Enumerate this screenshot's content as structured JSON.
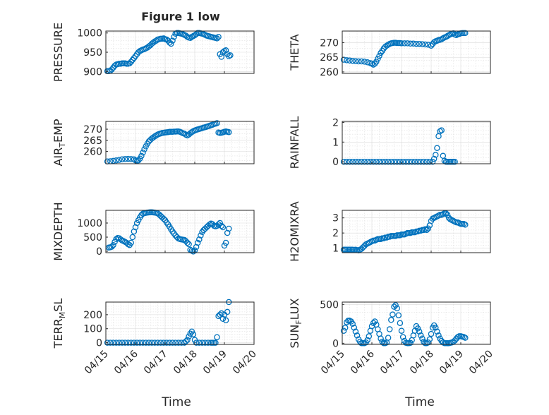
{
  "figure": {
    "title": "Figure 1 low",
    "xlabel": "Time",
    "xticklabels": [
      "04/15",
      "04/16",
      "04/17",
      "04/18",
      "04/19",
      "04/20"
    ]
  },
  "colors": {
    "marker": "#0072bd",
    "axis": "#262626",
    "grid": "#d9d9d9"
  },
  "chart_data": [
    {
      "type": "scatter",
      "id": "pressure",
      "ylabel": "PRESSURE",
      "title": "Figure 1 low",
      "xlim": [
        "04/15",
        "04/20"
      ],
      "ylim": [
        895,
        1005
      ],
      "yticks": [
        900,
        950,
        1000
      ],
      "minor_y": [
        910,
        920,
        930,
        940,
        960,
        970,
        980,
        990
      ],
      "grid": true,
      "marker": "open-circle",
      "x": [
        0.05,
        0.1,
        0.15,
        0.2,
        0.25,
        0.3,
        0.35,
        0.4,
        0.45,
        0.5,
        0.55,
        0.6,
        0.65,
        0.7,
        0.75,
        0.8,
        0.85,
        0.9,
        0.95,
        1.0,
        1.05,
        1.1,
        1.15,
        1.2,
        1.25,
        1.3,
        1.35,
        1.4,
        1.45,
        1.5,
        1.55,
        1.6,
        1.65,
        1.7,
        1.75,
        1.8,
        1.85,
        1.9,
        1.95,
        2.0,
        2.05,
        2.1,
        2.15,
        2.2,
        2.25,
        2.3,
        2.35,
        2.4,
        2.45,
        2.5,
        2.55,
        2.6,
        2.65,
        2.7,
        2.75,
        2.8,
        2.85,
        2.9,
        2.95,
        3.0,
        3.05,
        3.1,
        3.15,
        3.2,
        3.25,
        3.3,
        3.35,
        3.4,
        3.45,
        3.5,
        3.55,
        3.6,
        3.65,
        3.7,
        3.75,
        3.8,
        3.85,
        3.9,
        3.95,
        4.0,
        4.05,
        4.1,
        4.15,
        4.2
      ],
      "y": [
        901,
        901,
        902,
        905,
        910,
        915,
        918,
        919,
        920,
        920,
        921,
        921,
        921,
        920,
        920,
        921,
        925,
        930,
        935,
        940,
        945,
        950,
        953,
        955,
        957,
        958,
        960,
        962,
        965,
        968,
        972,
        975,
        978,
        980,
        983,
        984,
        985,
        985,
        986,
        984,
        983,
        980,
        975,
        972,
        980,
        990,
        998,
        1000,
        1000,
        999,
        998,
        997,
        995,
        993,
        990,
        988,
        987,
        990,
        992,
        994,
        997,
        1000,
        1000,
        999,
        998,
        997,
        995,
        993,
        992,
        991,
        990,
        989,
        988,
        987,
        986,
        990,
        945,
        938,
        950,
        953,
        955,
        945,
        940,
        942
      ]
    },
    {
      "type": "scatter",
      "id": "theta",
      "ylabel": "THETA",
      "xlim": [
        "04/15",
        "04/20"
      ],
      "ylim": [
        259.5,
        274
      ],
      "yticks": [
        260,
        265,
        270
      ],
      "minor_y": [
        262,
        264,
        266,
        268,
        272
      ],
      "grid": true,
      "marker": "open-circle",
      "x": [
        0.05,
        0.15,
        0.25,
        0.35,
        0.45,
        0.55,
        0.65,
        0.75,
        0.85,
        0.95,
        1.0,
        1.05,
        1.1,
        1.15,
        1.2,
        1.25,
        1.3,
        1.35,
        1.4,
        1.45,
        1.5,
        1.55,
        1.6,
        1.65,
        1.7,
        1.75,
        1.8,
        1.85,
        1.9,
        1.95,
        2.0,
        2.1,
        2.2,
        2.3,
        2.4,
        2.5,
        2.6,
        2.7,
        2.8,
        2.9,
        3.0,
        3.05,
        3.1,
        3.15,
        3.2,
        3.25,
        3.3,
        3.35,
        3.4,
        3.45,
        3.5,
        3.55,
        3.6,
        3.65,
        3.7,
        3.75,
        3.8,
        3.85,
        3.9,
        3.95,
        4.0,
        4.05,
        4.1,
        4.15
      ],
      "y": [
        264.2,
        264.0,
        263.9,
        263.8,
        263.7,
        263.6,
        263.6,
        263.5,
        263.3,
        263.0,
        262.8,
        262.5,
        262.8,
        263.5,
        264.5,
        265.5,
        266.5,
        267.2,
        268.0,
        268.6,
        269.0,
        269.3,
        269.6,
        269.8,
        269.9,
        270.0,
        270.0,
        269.9,
        269.9,
        269.9,
        269.8,
        269.8,
        269.8,
        269.7,
        269.7,
        269.6,
        269.6,
        269.5,
        269.4,
        269.3,
        269.0,
        269.6,
        270.2,
        270.5,
        270.7,
        270.9,
        271.0,
        271.2,
        271.5,
        271.8,
        272.0,
        272.3,
        272.6,
        272.9,
        273.1,
        273.2,
        272.8,
        272.6,
        272.9,
        273.0,
        273.2,
        273.3,
        273.3,
        273.3
      ]
    },
    {
      "type": "scatter",
      "id": "air-temp",
      "ylabel": "AIR_TEMP",
      "xlim": [
        "04/15",
        "04/20"
      ],
      "ylim": [
        254.5,
        273.5
      ],
      "yticks": [
        260,
        265,
        270
      ],
      "minor_y": [
        256,
        258,
        262,
        264,
        266,
        268,
        272
      ],
      "grid": true,
      "marker": "open-circle",
      "x": [
        0.05,
        0.15,
        0.25,
        0.35,
        0.45,
        0.55,
        0.65,
        0.75,
        0.85,
        0.95,
        1.0,
        1.05,
        1.1,
        1.15,
        1.2,
        1.25,
        1.3,
        1.35,
        1.4,
        1.45,
        1.5,
        1.55,
        1.6,
        1.65,
        1.7,
        1.75,
        1.8,
        1.85,
        1.9,
        1.95,
        2.0,
        2.05,
        2.1,
        2.15,
        2.2,
        2.25,
        2.3,
        2.35,
        2.4,
        2.45,
        2.5,
        2.55,
        2.6,
        2.65,
        2.7,
        2.75,
        2.8,
        2.85,
        2.9,
        2.95,
        3.0,
        3.05,
        3.1,
        3.15,
        3.2,
        3.25,
        3.3,
        3.35,
        3.4,
        3.45,
        3.5,
        3.55,
        3.6,
        3.65,
        3.7,
        3.75,
        3.8,
        3.85,
        3.9,
        3.95,
        4.0,
        4.05,
        4.1,
        4.15
      ],
      "y": [
        255.5,
        255.6,
        255.8,
        256.0,
        256.2,
        256.5,
        256.6,
        256.7,
        256.6,
        256.5,
        256.0,
        255.8,
        256.0,
        256.8,
        258.0,
        259.5,
        261.0,
        262.3,
        263.5,
        264.5,
        265.2,
        265.8,
        266.3,
        266.8,
        267.2,
        267.6,
        267.9,
        268.1,
        268.3,
        268.4,
        268.5,
        268.6,
        268.7,
        268.8,
        268.8,
        268.8,
        268.9,
        268.9,
        269.0,
        269.0,
        268.8,
        268.5,
        268.2,
        268.0,
        267.5,
        267.2,
        267.6,
        268.2,
        268.7,
        269.1,
        269.4,
        269.7,
        269.9,
        270.1,
        270.3,
        270.5,
        270.7,
        270.9,
        271.1,
        271.3,
        271.5,
        271.8,
        272.0,
        272.3,
        272.5,
        272.7,
        268.5,
        268.3,
        268.4,
        268.6,
        268.8,
        269.0,
        268.8,
        268.7
      ]
    },
    {
      "type": "scatter",
      "id": "rainfall",
      "ylabel": "RAINFALL",
      "xlim": [
        "04/15",
        "04/20"
      ],
      "ylim": [
        -0.1,
        2.05
      ],
      "yticks": [
        0,
        1,
        2
      ],
      "minor_y": [
        0.2,
        0.4,
        0.6,
        0.8,
        1.2,
        1.4,
        1.6,
        1.8
      ],
      "grid": true,
      "marker": "open-circle",
      "x": [
        0.05,
        0.15,
        0.25,
        0.35,
        0.45,
        0.55,
        0.65,
        0.75,
        0.85,
        0.95,
        1.05,
        1.15,
        1.25,
        1.35,
        1.45,
        1.55,
        1.65,
        1.75,
        1.85,
        1.95,
        2.05,
        2.15,
        2.25,
        2.35,
        2.45,
        2.55,
        2.65,
        2.75,
        2.85,
        2.95,
        3.05,
        3.1,
        3.15,
        3.2,
        3.25,
        3.3,
        3.35,
        3.4,
        3.45,
        3.5,
        3.55,
        3.6,
        3.65,
        3.7,
        3.75,
        3.8
      ],
      "y": [
        0,
        0,
        0,
        0,
        0,
        0,
        0,
        0,
        0,
        0,
        0,
        0,
        0,
        0,
        0,
        0,
        0,
        0,
        0,
        0,
        0,
        0,
        0,
        0,
        0,
        0,
        0,
        0,
        0,
        0,
        0,
        0.15,
        0.35,
        0.7,
        1.3,
        1.55,
        1.6,
        0.3,
        0.05,
        0,
        0,
        0,
        0,
        0,
        0,
        0
      ]
    },
    {
      "type": "scatter",
      "id": "mixdepth",
      "ylabel": "MIXDEPTH",
      "xlim": [
        "04/15",
        "04/20"
      ],
      "ylim": [
        -50,
        1450
      ],
      "yticks": [
        0,
        500,
        1000
      ],
      "minor_y": [
        100,
        200,
        300,
        400,
        600,
        700,
        800,
        900,
        1100,
        1200,
        1300
      ],
      "grid": true,
      "marker": "open-circle",
      "x": [
        0.1,
        0.15,
        0.2,
        0.25,
        0.3,
        0.35,
        0.4,
        0.45,
        0.5,
        0.55,
        0.6,
        0.65,
        0.7,
        0.75,
        0.8,
        0.85,
        0.9,
        0.95,
        1.0,
        1.05,
        1.1,
        1.15,
        1.2,
        1.25,
        1.3,
        1.35,
        1.4,
        1.45,
        1.5,
        1.55,
        1.6,
        1.65,
        1.7,
        1.75,
        1.8,
        1.85,
        1.9,
        1.95,
        2.0,
        2.05,
        2.1,
        2.15,
        2.2,
        2.25,
        2.3,
        2.35,
        2.4,
        2.45,
        2.5,
        2.55,
        2.6,
        2.65,
        2.7,
        2.75,
        2.8,
        2.85,
        2.9,
        2.95,
        3.0,
        3.05,
        3.1,
        3.15,
        3.2,
        3.25,
        3.3,
        3.35,
        3.4,
        3.45,
        3.5,
        3.55,
        3.6,
        3.65,
        3.7,
        3.75,
        3.8,
        3.85,
        3.9,
        3.95,
        4.0,
        4.05,
        4.1,
        4.15
      ],
      "y": [
        130,
        140,
        160,
        220,
        330,
        430,
        470,
        460,
        420,
        380,
        360,
        330,
        300,
        250,
        220,
        300,
        500,
        700,
        850,
        1000,
        1100,
        1200,
        1280,
        1330,
        1350,
        1360,
        1370,
        1375,
        1380,
        1380,
        1375,
        1370,
        1360,
        1340,
        1300,
        1250,
        1200,
        1150,
        1100,
        1020,
        950,
        870,
        780,
        700,
        630,
        560,
        500,
        450,
        430,
        420,
        410,
        400,
        360,
        300,
        250,
        50,
        20,
        -10,
        30,
        150,
        300,
        420,
        560,
        680,
        750,
        800,
        850,
        900,
        950,
        980,
        960,
        900,
        880,
        900,
        950,
        1000,
        900,
        850,
        200,
        300,
        650,
        800
      ]
    },
    {
      "type": "scatter",
      "id": "h2omixra",
      "ylabel": "H2OMIXRA",
      "xlim": [
        "04/15",
        "04/20"
      ],
      "ylim": [
        0.7,
        3.5
      ],
      "yticks": [
        1,
        2,
        3
      ],
      "minor_y": [
        1.2,
        1.4,
        1.6,
        1.8,
        2.2,
        2.4,
        2.6,
        2.8,
        3.2
      ],
      "grid": true,
      "marker": "open-circle",
      "x": [
        0.05,
        0.1,
        0.15,
        0.2,
        0.25,
        0.3,
        0.35,
        0.4,
        0.45,
        0.5,
        0.55,
        0.6,
        0.65,
        0.7,
        0.75,
        0.8,
        0.85,
        0.9,
        0.95,
        1.0,
        1.05,
        1.1,
        1.15,
        1.2,
        1.25,
        1.3,
        1.35,
        1.4,
        1.45,
        1.5,
        1.55,
        1.6,
        1.65,
        1.7,
        1.75,
        1.8,
        1.85,
        1.9,
        1.95,
        2.0,
        2.05,
        2.1,
        2.15,
        2.2,
        2.25,
        2.3,
        2.35,
        2.4,
        2.45,
        2.5,
        2.55,
        2.6,
        2.65,
        2.7,
        2.75,
        2.8,
        2.85,
        2.9,
        2.95,
        3.0,
        3.05,
        3.1,
        3.15,
        3.2,
        3.25,
        3.3,
        3.35,
        3.4,
        3.45,
        3.5,
        3.55,
        3.6,
        3.65,
        3.7,
        3.75,
        3.8,
        3.85,
        3.9,
        3.95,
        4.0,
        4.05,
        4.1,
        4.15
      ],
      "y": [
        0.9,
        0.9,
        0.9,
        0.9,
        0.9,
        0.9,
        0.9,
        0.88,
        0.9,
        0.87,
        0.85,
        0.9,
        0.95,
        1.05,
        1.15,
        1.25,
        1.3,
        1.35,
        1.4,
        1.45,
        1.5,
        1.5,
        1.55,
        1.6,
        1.6,
        1.6,
        1.65,
        1.65,
        1.7,
        1.7,
        1.75,
        1.75,
        1.8,
        1.8,
        1.8,
        1.8,
        1.85,
        1.85,
        1.85,
        1.9,
        1.9,
        1.9,
        1.95,
        2.0,
        2.0,
        2.0,
        2.05,
        2.05,
        2.05,
        2.1,
        2.1,
        2.15,
        2.15,
        2.2,
        2.2,
        2.25,
        2.2,
        2.3,
        2.5,
        2.8,
        2.95,
        3.0,
        3.05,
        3.1,
        3.15,
        3.2,
        3.2,
        3.25,
        3.3,
        3.3,
        3.2,
        3.0,
        2.9,
        2.85,
        2.8,
        2.75,
        2.7,
        2.7,
        2.65,
        2.6,
        2.6,
        2.6,
        2.55
      ]
    },
    {
      "type": "scatter",
      "id": "terr-msl",
      "ylabel": "TERR_MSL",
      "xlim": [
        "04/15",
        "04/20"
      ],
      "ylim": [
        -12,
        290
      ],
      "yticks": [
        0,
        100,
        200
      ],
      "minor_y": [
        20,
        40,
        60,
        80,
        120,
        140,
        160,
        180,
        220,
        240,
        260,
        280
      ],
      "grid": true,
      "marker": "open-circle",
      "x": [
        0.05,
        0.15,
        0.25,
        0.35,
        0.45,
        0.55,
        0.65,
        0.75,
        0.85,
        0.95,
        1.05,
        1.15,
        1.25,
        1.35,
        1.45,
        1.55,
        1.65,
        1.75,
        1.85,
        1.95,
        2.05,
        2.15,
        2.25,
        2.35,
        2.45,
        2.55,
        2.65,
        2.7,
        2.75,
        2.8,
        2.85,
        2.9,
        2.95,
        3.0,
        3.05,
        3.15,
        3.25,
        3.35,
        3.45,
        3.55,
        3.6,
        3.65,
        3.7,
        3.75,
        3.8,
        3.85,
        3.9,
        3.95,
        4.0,
        4.05,
        4.1,
        4.15
      ],
      "y": [
        0,
        0,
        0,
        0,
        0,
        0,
        0,
        0,
        0,
        0,
        0,
        0,
        0,
        0,
        0,
        0,
        0,
        0,
        0,
        0,
        0,
        0,
        0,
        0,
        0,
        0,
        0,
        10,
        20,
        45,
        65,
        80,
        60,
        20,
        0,
        0,
        0,
        0,
        0,
        0,
        0,
        0,
        0,
        40,
        190,
        200,
        210,
        170,
        200,
        160,
        220,
        290
      ]
    },
    {
      "type": "scatter",
      "id": "sun-flux",
      "ylabel": "SUN_FLUX",
      "xlim": [
        "04/15",
        "04/20"
      ],
      "ylim": [
        -15,
        530
      ],
      "yticks": [
        0,
        500
      ],
      "minor_y": [
        100,
        200,
        300,
        400
      ],
      "grid": true,
      "marker": "open-circle",
      "x": [
        0.05,
        0.1,
        0.15,
        0.2,
        0.25,
        0.3,
        0.35,
        0.4,
        0.45,
        0.5,
        0.55,
        0.6,
        0.65,
        0.7,
        0.75,
        0.8,
        0.85,
        0.9,
        0.95,
        1.0,
        1.05,
        1.1,
        1.15,
        1.2,
        1.25,
        1.3,
        1.35,
        1.4,
        1.45,
        1.5,
        1.55,
        1.6,
        1.65,
        1.7,
        1.75,
        1.8,
        1.85,
        1.9,
        1.95,
        2.0,
        2.05,
        2.1,
        2.15,
        2.2,
        2.25,
        2.3,
        2.35,
        2.4,
        2.45,
        2.5,
        2.55,
        2.6,
        2.65,
        2.7,
        2.75,
        2.8,
        2.85,
        2.9,
        2.95,
        3.0,
        3.05,
        3.1,
        3.15,
        3.2,
        3.25,
        3.3,
        3.35,
        3.4,
        3.45,
        3.5,
        3.55,
        3.6,
        3.65,
        3.7,
        3.75,
        3.8,
        3.85,
        3.9,
        3.95,
        4.0,
        4.05,
        4.1,
        4.15
      ],
      "y": [
        160,
        200,
        270,
        290,
        290,
        280,
        250,
        200,
        150,
        100,
        50,
        20,
        0,
        0,
        0,
        10,
        40,
        90,
        160,
        220,
        260,
        280,
        240,
        180,
        120,
        60,
        20,
        0,
        0,
        10,
        70,
        180,
        300,
        370,
        470,
        490,
        450,
        360,
        260,
        160,
        80,
        30,
        5,
        0,
        0,
        5,
        40,
        100,
        160,
        220,
        190,
        150,
        100,
        60,
        20,
        0,
        0,
        10,
        50,
        120,
        200,
        230,
        200,
        150,
        100,
        60,
        30,
        10,
        0,
        0,
        0,
        0,
        5,
        10,
        20,
        35,
        60,
        80,
        90,
        90,
        85,
        80,
        70
      ]
    }
  ]
}
